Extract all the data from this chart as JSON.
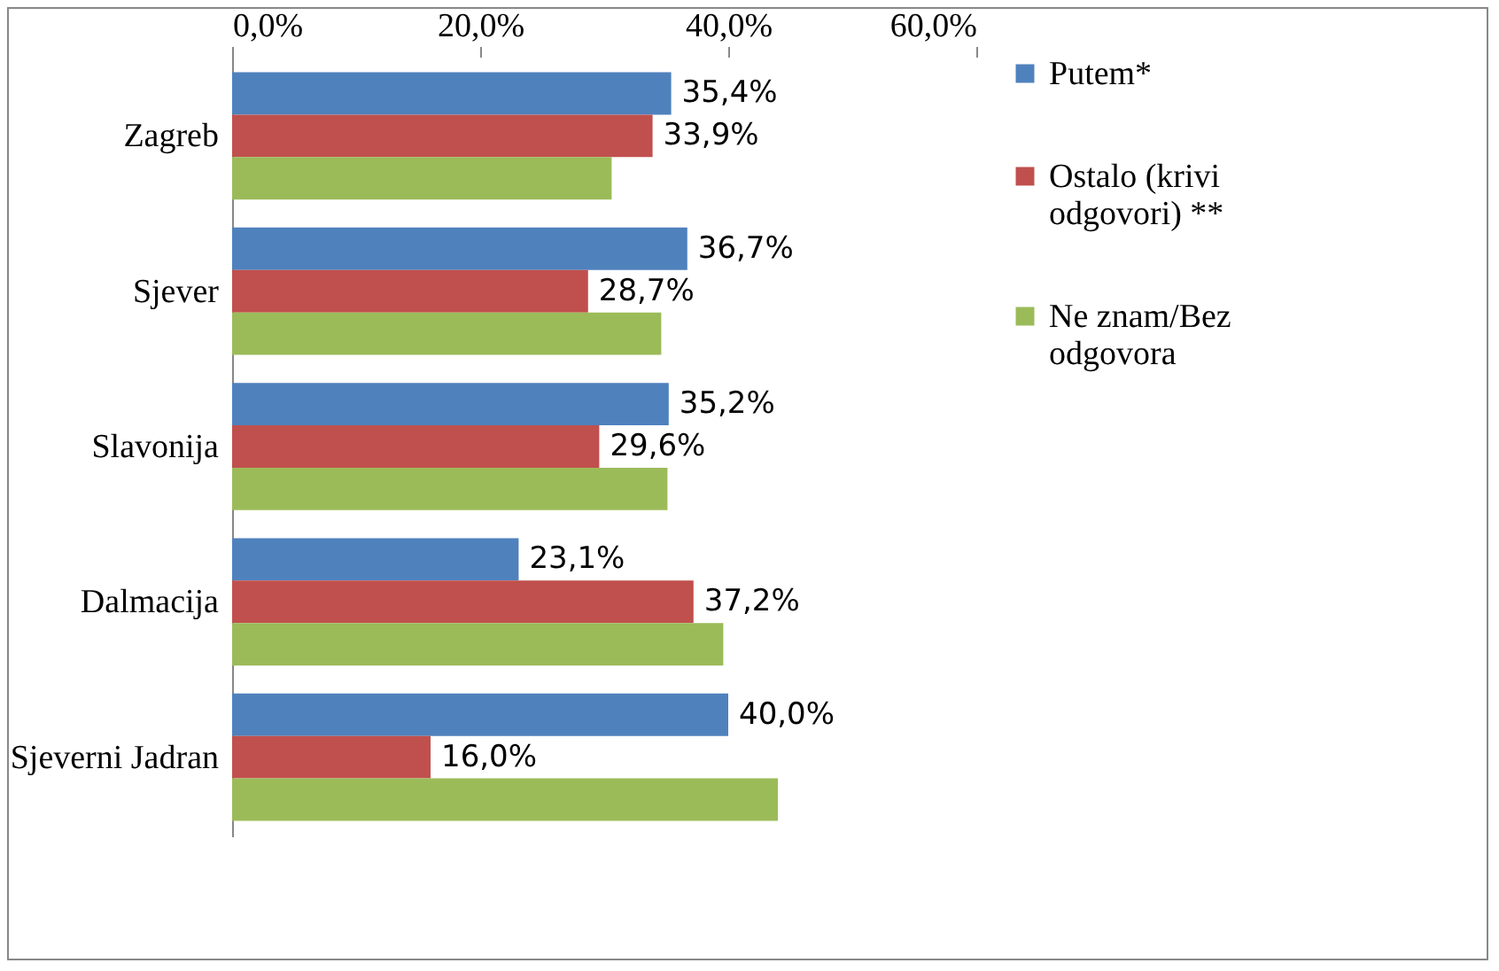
{
  "chart_data": {
    "type": "bar",
    "orientation": "horizontal",
    "categories": [
      "Zagreb",
      "Sjever",
      "Slavonija",
      "Dalmacija",
      "Sjeverni Jadran"
    ],
    "series": [
      {
        "name": "Putem*",
        "color": "#4f81bd",
        "values": [
          35.4,
          36.7,
          35.2,
          23.1,
          40.0
        ],
        "value_labels": [
          "35,4%",
          "36,7%",
          "35,2%",
          "23,1%",
          "40,0%"
        ]
      },
      {
        "name": "Ostalo (krivi odgovori) **",
        "color": "#c0504d",
        "values": [
          33.9,
          28.7,
          29.6,
          37.2,
          16.0
        ],
        "value_labels": [
          "33,9%",
          "28,7%",
          "29,6%",
          "37,2%",
          "16,0%"
        ]
      },
      {
        "name": "Ne znam/Bez odgovora",
        "color": "#9bbb59",
        "values": [
          30.6,
          34.6,
          35.1,
          39.6,
          44.0
        ]
      }
    ],
    "xlim": [
      0,
      60
    ],
    "xticks": [
      {
        "value": 0,
        "label": "0,0%"
      },
      {
        "value": 20,
        "label": "20,0%"
      },
      {
        "value": 40,
        "label": "40,0%"
      },
      {
        "value": 60,
        "label": "60,0%"
      }
    ],
    "grid": false,
    "legend": "right"
  }
}
